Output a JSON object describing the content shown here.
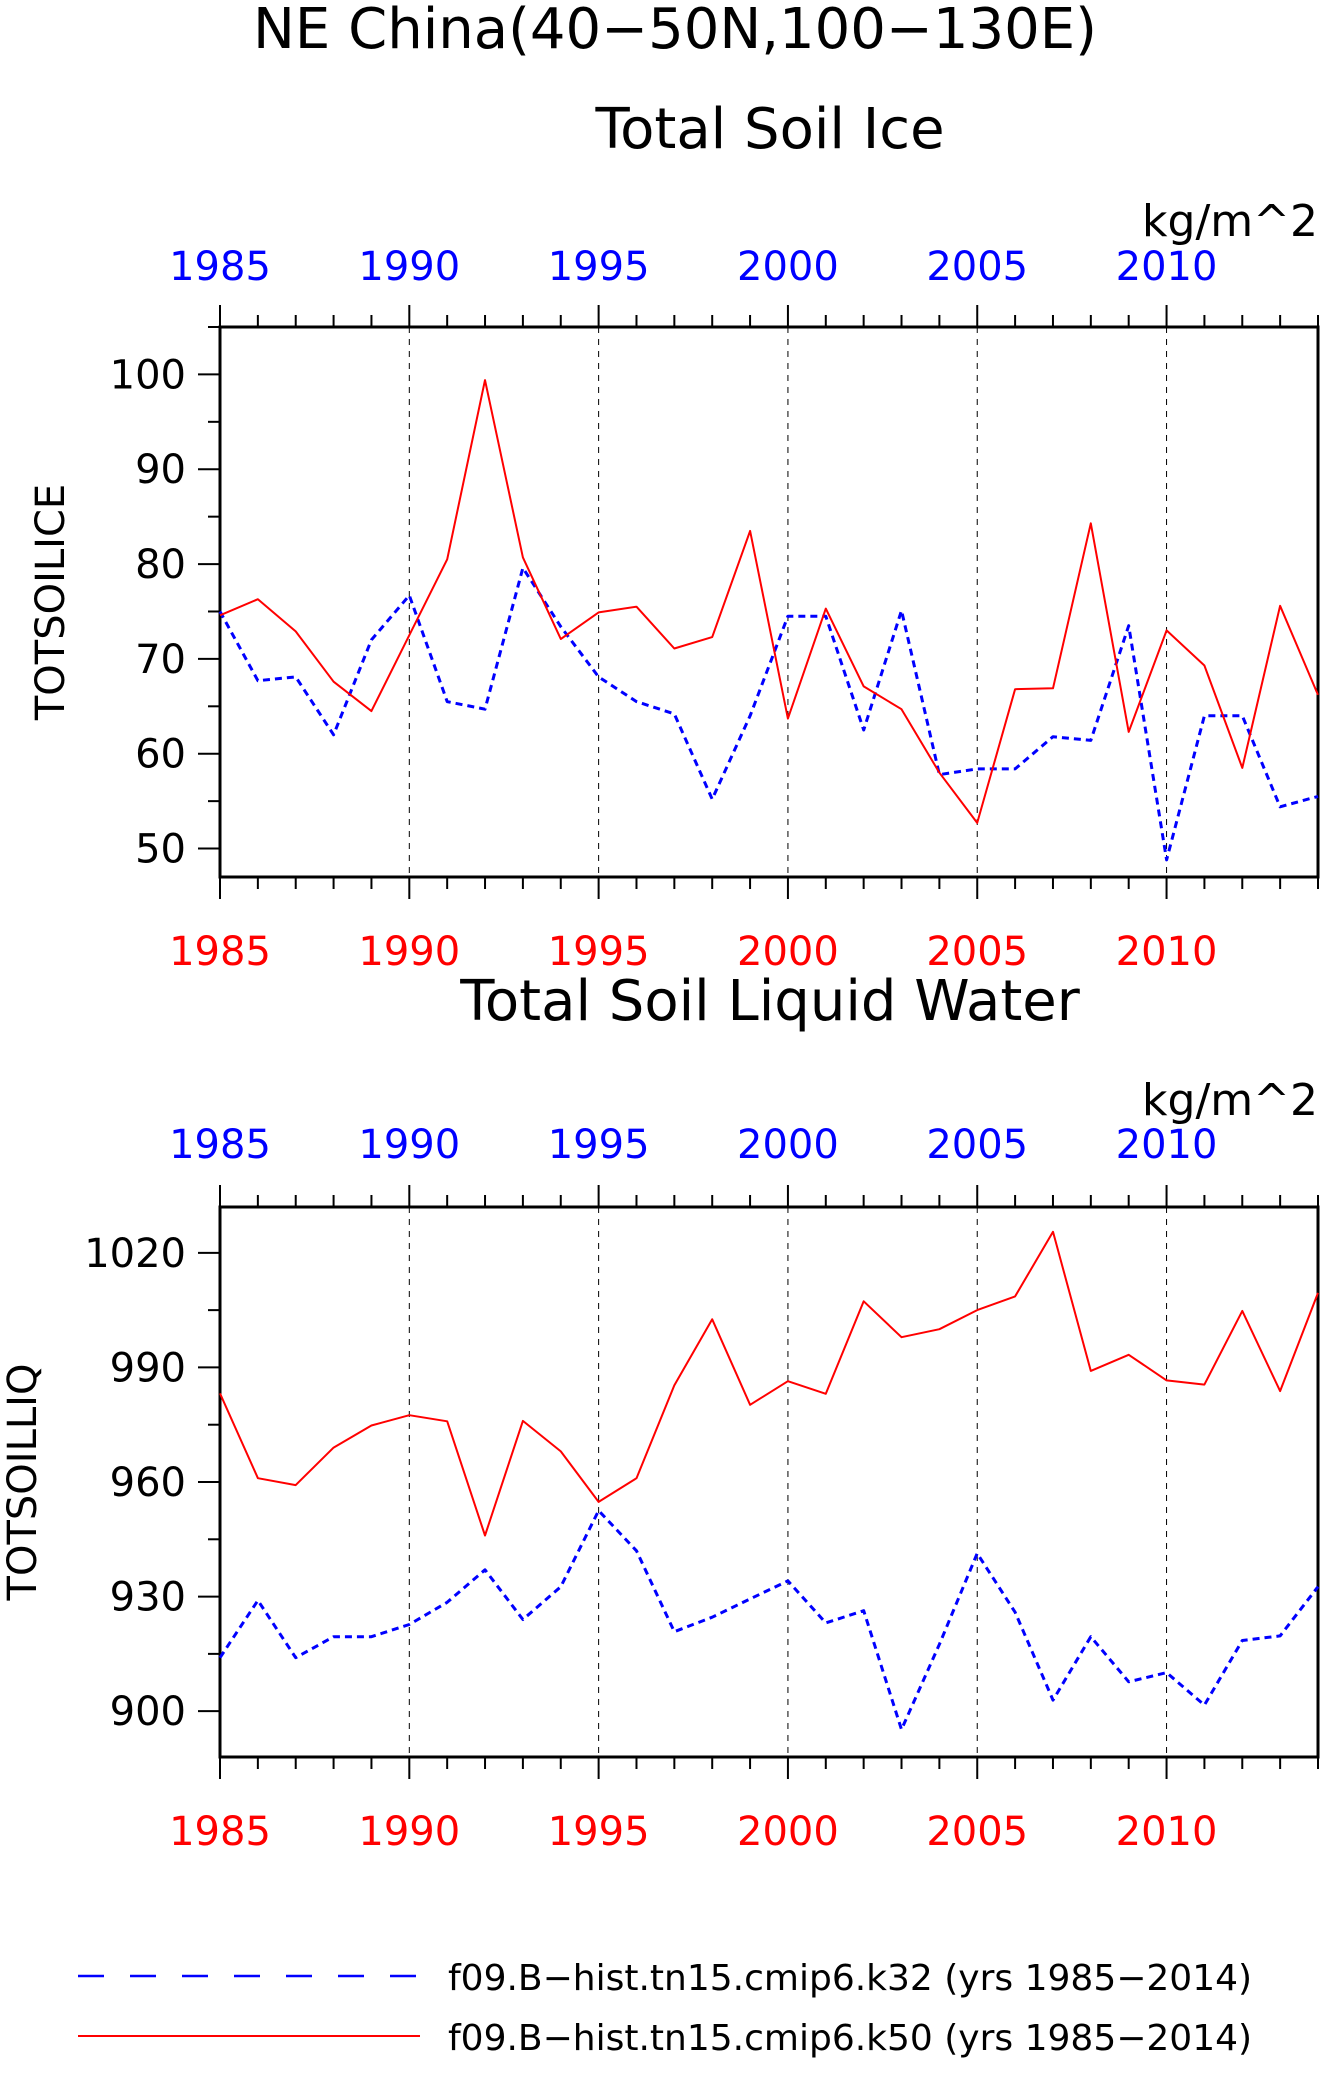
{
  "page": {
    "title": "NE China(40−50N,100−130E)"
  },
  "colors": {
    "k32": "#0000ff",
    "k50": "#ff0000",
    "axis": "#000000",
    "grid": "#000000"
  },
  "chart_data": [
    {
      "type": "line",
      "title": "Total Soil Ice",
      "units": "kg/m^2",
      "ylabel": "TOTSOILICE",
      "xlim": [
        1985,
        2014
      ],
      "ylim": [
        47,
        105
      ],
      "yticks": [
        50,
        60,
        70,
        80,
        90,
        100
      ],
      "xticks": [
        "1985",
        "1990",
        "1995",
        "2000",
        "2005",
        "2010"
      ],
      "top_xticks": [
        "1985",
        "1990",
        "1995",
        "2000",
        "2005",
        "2010"
      ],
      "grid_x": true,
      "x": [
        1985,
        1986,
        1987,
        1988,
        1989,
        1990,
        1991,
        1992,
        1993,
        1994,
        1995,
        1996,
        1997,
        1998,
        1999,
        2000,
        2001,
        2002,
        2003,
        2004,
        2005,
        2006,
        2007,
        2008,
        2009,
        2010,
        2011,
        2012,
        2013,
        2014
      ],
      "series": [
        {
          "name": "f09.B−hist.tn15.cmip6.k32 (yrs 1985−2014)",
          "key": "k32",
          "style": "dashed",
          "values": [
            75,
            67.7,
            68.1,
            62,
            72,
            76.7,
            65.5,
            64.7,
            79.6,
            73.4,
            68.1,
            65.5,
            64.2,
            55.2,
            64,
            74.5,
            74.5,
            62.5,
            75.1,
            57.8,
            58.4,
            58.4,
            61.8,
            61.4,
            73.5,
            48.8,
            64,
            64,
            54.4,
            55.5
          ]
        },
        {
          "name": "f09.B−hist.tn15.cmip6.k50 (yrs 1985−2014)",
          "key": "k50",
          "style": "solid",
          "values": [
            74.6,
            76.3,
            72.9,
            67.6,
            64.5,
            72.5,
            80.5,
            99.4,
            80.7,
            72.1,
            74.9,
            75.5,
            71.1,
            72.3,
            83.5,
            63.7,
            75.3,
            67.1,
            64.7,
            58,
            52.7,
            66.8,
            66.9,
            84.3,
            62.3,
            73,
            69.3,
            58.5,
            75.6,
            66.2
          ]
        }
      ]
    },
    {
      "type": "line",
      "title": "Total Soil Liquid Water",
      "units": "kg/m^2",
      "ylabel": "TOTSOILLIQ",
      "xlim": [
        1985,
        2014
      ],
      "ylim": [
        888,
        1032
      ],
      "yticks": [
        900,
        930,
        960,
        990,
        1020
      ],
      "xticks": [
        "1985",
        "1990",
        "1995",
        "2000",
        "2005",
        "2010"
      ],
      "top_xticks": [
        "1985",
        "1990",
        "1995",
        "2000",
        "2005",
        "2010"
      ],
      "grid_x": true,
      "x": [
        1985,
        1986,
        1987,
        1988,
        1989,
        1990,
        1991,
        1992,
        1993,
        1994,
        1995,
        1996,
        1997,
        1998,
        1999,
        2000,
        2001,
        2002,
        2003,
        2004,
        2005,
        2006,
        2007,
        2008,
        2009,
        2010,
        2011,
        2012,
        2013,
        2014
      ],
      "series": [
        {
          "name": "f09.B−hist.tn15.cmip6.k32 (yrs 1985−2014)",
          "key": "k32",
          "style": "dashed",
          "values": [
            914,
            929,
            914,
            919.5,
            919.5,
            922.7,
            928.5,
            937,
            924,
            932.6,
            952.5,
            942,
            920.8,
            924.6,
            929.4,
            934.1,
            923.1,
            926.3,
            895.2,
            917.5,
            941.3,
            925.9,
            902.9,
            919.5,
            907.7,
            910.1,
            901.6,
            918.5,
            919.7,
            932.6
          ]
        },
        {
          "name": "f09.B−hist.tn15.cmip6.k50 (yrs 1985−2014)",
          "key": "k50",
          "style": "solid",
          "values": [
            983.2,
            961,
            959.2,
            969,
            974.8,
            977.5,
            975.9,
            946,
            976,
            968,
            954.8,
            961,
            985.3,
            1002.6,
            980.2,
            986.4,
            983.1,
            1007.3,
            997.9,
            1000,
            1005,
            1008.6,
            1025.5,
            989.1,
            993.3,
            986.6,
            985.5,
            1004.8,
            983.8,
            1009.5
          ]
        }
      ]
    }
  ],
  "legend": {
    "items": [
      {
        "key": "k32",
        "style": "dashed",
        "label": "f09.B−hist.tn15.cmip6.k32 (yrs 1985−2014)"
      },
      {
        "key": "k50",
        "style": "solid",
        "label": "f09.B−hist.tn15.cmip6.k50 (yrs 1985−2014)"
      }
    ]
  }
}
